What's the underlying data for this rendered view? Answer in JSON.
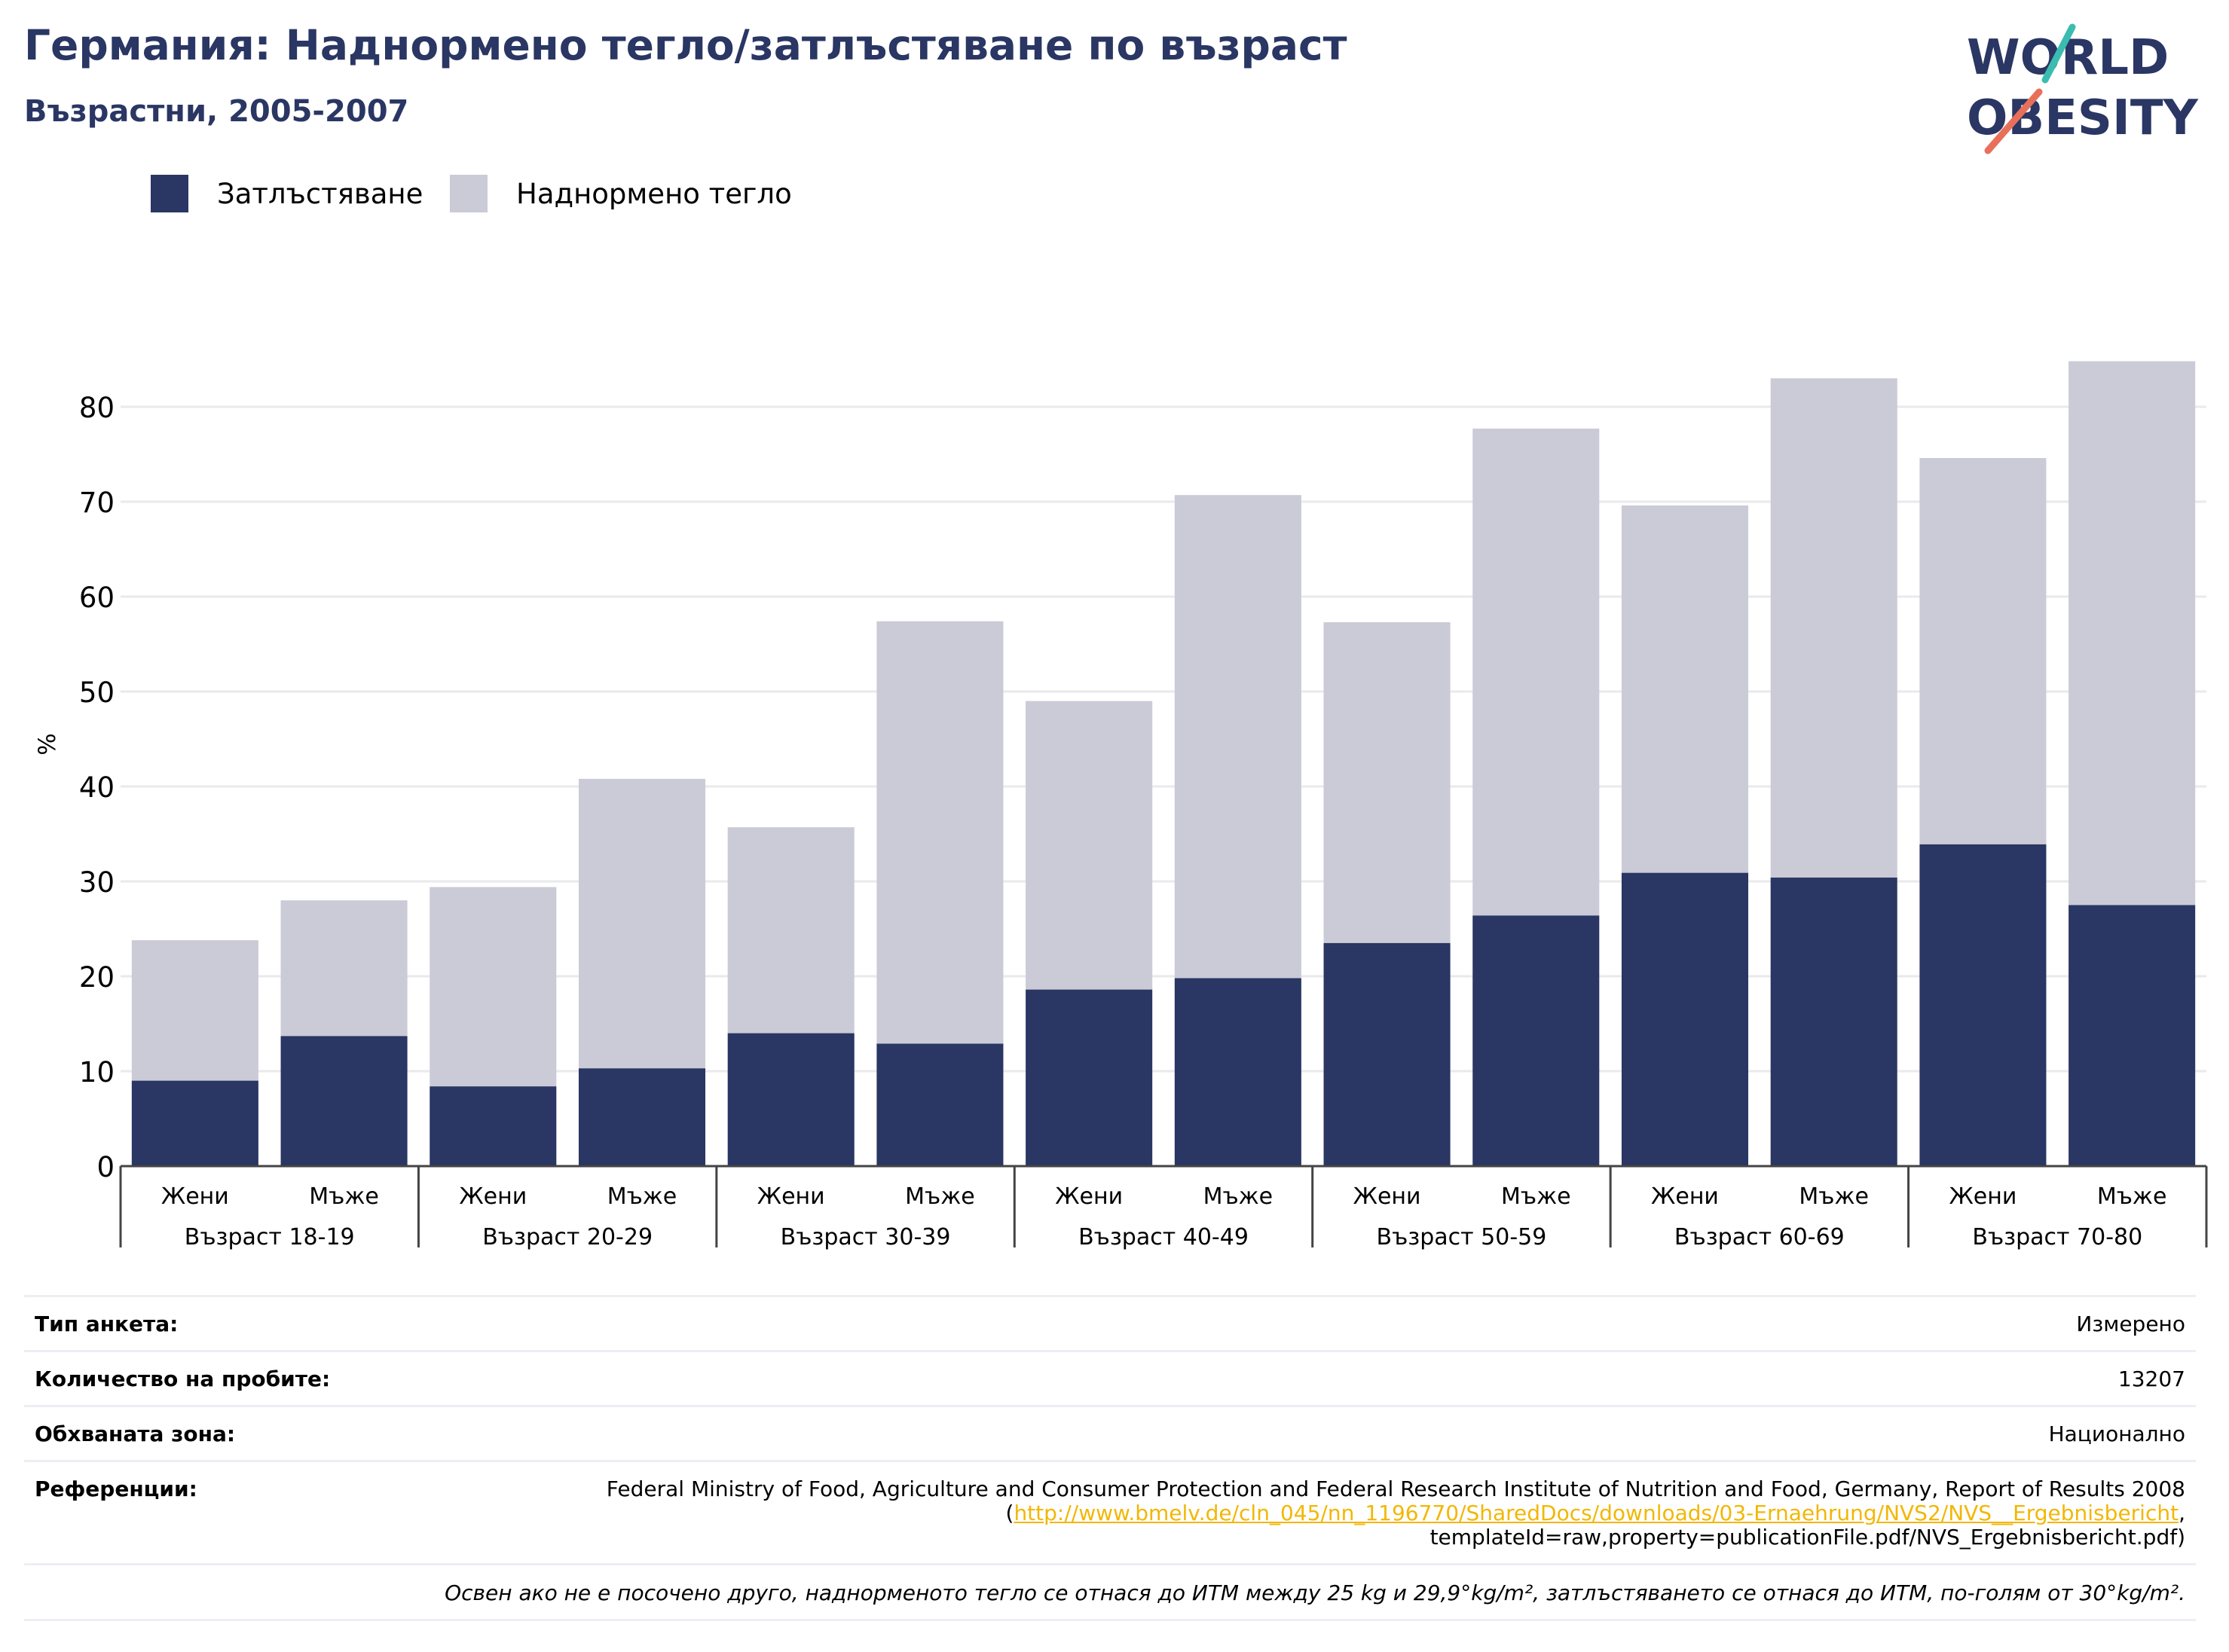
{
  "header": {
    "title": "Германия: Наднормено тегло/затлъстяване по възраст",
    "subtitle": "Възрастни, 2005-2007"
  },
  "logo": {
    "line1": "WORLD",
    "line2": "OBESITY"
  },
  "colors": {
    "obesity": "#2a3663",
    "overweight": "#cacbd6",
    "title": "#2a3663",
    "grid": "#e9e9ee",
    "axis": "#444444",
    "logo_teal": "#3bbcb0",
    "logo_coral": "#e8705a",
    "link": "#f2b705"
  },
  "legend": [
    {
      "name": "Затлъстяване",
      "color": "#2a3663"
    },
    {
      "name": "Наднормено тегло",
      "color": "#cacbd6"
    }
  ],
  "chart_data": {
    "type": "bar",
    "stacked": true,
    "ylabel": "%",
    "ylim": [
      0,
      90
    ],
    "yticks": [
      0,
      10,
      20,
      30,
      40,
      50,
      60,
      70,
      80
    ],
    "grid": true,
    "legend_position": "top-left",
    "categories": [
      {
        "sex": "Жени",
        "group": "Възраст 18-19"
      },
      {
        "sex": "Мъже",
        "group": "Възраст 18-19"
      },
      {
        "sex": "Жени",
        "group": "Възраст 20-29"
      },
      {
        "sex": "Мъже",
        "group": "Възраст 20-29"
      },
      {
        "sex": "Жени",
        "group": "Възраст 30-39"
      },
      {
        "sex": "Мъже",
        "group": "Възраст 30-39"
      },
      {
        "sex": "Жени",
        "group": "Възраст 40-49"
      },
      {
        "sex": "Мъже",
        "group": "Възраст 40-49"
      },
      {
        "sex": "Жени",
        "group": "Възраст 50-59"
      },
      {
        "sex": "Мъже",
        "group": "Възраст 50-59"
      },
      {
        "sex": "Жени",
        "group": "Възраст 60-69"
      },
      {
        "sex": "Мъже",
        "group": "Възраст 60-69"
      },
      {
        "sex": "Жени",
        "group": "Възраст 70-80"
      },
      {
        "sex": "Мъже",
        "group": "Възраст 70-80"
      }
    ],
    "groups": [
      "Възраст 18-19",
      "Възраст 20-29",
      "Възраст 30-39",
      "Възраст 40-49",
      "Възраст 50-59",
      "Възраст 60-69",
      "Възраст 70-80"
    ],
    "series": [
      {
        "name": "Затлъстяване",
        "values": [
          9.0,
          13.7,
          8.4,
          10.3,
          14.0,
          12.9,
          18.6,
          19.8,
          23.5,
          26.4,
          30.9,
          30.4,
          33.9,
          27.5
        ]
      },
      {
        "name": "Наднормено тегло",
        "values": [
          14.8,
          14.3,
          21.0,
          30.5,
          21.7,
          44.5,
          30.4,
          50.9,
          33.8,
          51.3,
          38.7,
          52.6,
          40.7,
          57.3
        ]
      }
    ]
  },
  "meta": {
    "survey_type_label": "Тип анкета:",
    "survey_type_value": "Измерено",
    "sample_size_label": "Количество на пробите:",
    "sample_size_value": "13207",
    "area_label": "Обхваната зона:",
    "area_value": "Национално",
    "references_label": "Референции:",
    "references_text": "Federal Ministry of Food, Agriculture and Consumer Protection and Federal Research Institute of Nutrition and Food, Germany, Report of Results 2008 (",
    "references_link": "http://www.bmelv.de/cln_045/nn_1196770/SharedDocs/downloads/03-Ernaehrung/NVS2/NVS__Ergebnisbericht",
    "references_tail": ", templateId=raw,property=publicationFile.pdf/NVS_Ergebnisbericht.pdf)",
    "note": "Освен ако не е посочено друго, наднормeното тегло се отнася до ИТМ между 25 kg и 29,9°kg/m², затлъстяването се отнася до ИТМ, по-голям от 30°kg/m²."
  }
}
